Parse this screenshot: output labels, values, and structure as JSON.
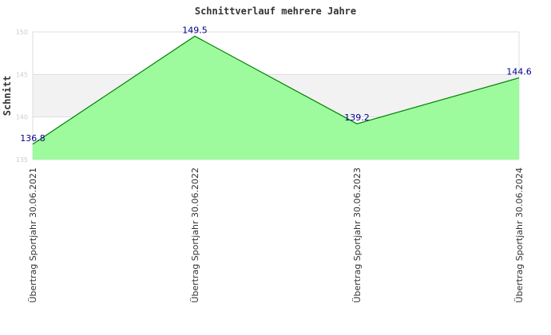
{
  "chart_data": {
    "type": "area",
    "title": "Schnittverlauf mehrere Jahre",
    "xlabel": "",
    "ylabel": "Schnitt",
    "ylim": [
      135,
      150
    ],
    "yticks": [
      "135",
      "140",
      "145",
      "150"
    ],
    "categories": [
      "Übertrag Sportjahr 30.06.2021",
      "Übertrag Sportjahr 30.06.2022",
      "Übertrag Sportjahr 30.06.2023",
      "Übertrag Sportjahr 30.06.2024"
    ],
    "values": [
      136.8,
      149.5,
      139.2,
      144.6
    ],
    "data_labels": [
      "136.8",
      "149.5",
      "139.2",
      "144.6"
    ],
    "grid": true,
    "colors": {
      "fill": "#98fb98",
      "line": "#008000",
      "label": "#00008b",
      "band": "#f2f2f2"
    }
  }
}
